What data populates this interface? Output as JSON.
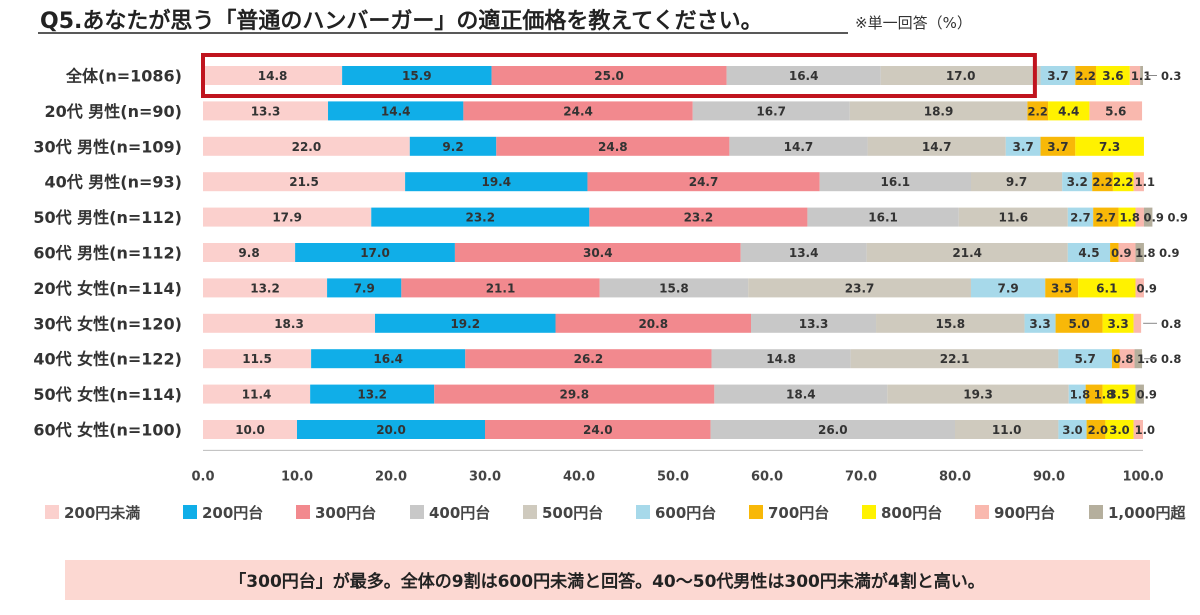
{
  "chart_data": {
    "type": "bar",
    "orientation": "horizontal",
    "stacked": true,
    "title": "Q5.あなたが思う「普通のハンバーガー」の適正価格を教えてください。",
    "note": "※単一回答（%）",
    "categories": [
      "全体(n=1086)",
      "20代 男性(n=90)",
      "30代 男性(n=109)",
      "40代 男性(n=93)",
      "50代 男性(n=112)",
      "60代 男性(n=112)",
      "20代 女性(n=114)",
      "30代 女性(n=120)",
      "40代 女性(n=122)",
      "50代 女性(n=114)",
      "60代 女性(n=100)"
    ],
    "series": [
      {
        "name": "200円未満",
        "color": "#fbd0cd",
        "values": [
          14.8,
          13.3,
          22.0,
          21.5,
          17.9,
          9.8,
          13.2,
          18.3,
          11.5,
          11.4,
          10.0
        ]
      },
      {
        "name": "200円台",
        "color": "#10aee8",
        "values": [
          15.9,
          14.4,
          9.2,
          19.4,
          23.2,
          17.0,
          7.9,
          19.2,
          16.4,
          13.2,
          20.0
        ]
      },
      {
        "name": "300円台",
        "color": "#f2898e",
        "values": [
          25.0,
          24.4,
          24.8,
          24.7,
          23.2,
          30.4,
          21.1,
          20.8,
          26.2,
          29.8,
          24.0
        ]
      },
      {
        "name": "400円台",
        "color": "#c8c8c8",
        "values": [
          16.4,
          16.7,
          14.7,
          16.1,
          16.1,
          13.4,
          15.8,
          13.3,
          14.8,
          18.4,
          26.0
        ]
      },
      {
        "name": "500円台",
        "color": "#cfcabe",
        "values": [
          17.0,
          18.9,
          14.7,
          9.7,
          11.6,
          21.4,
          23.7,
          15.8,
          22.1,
          19.3,
          11.0
        ]
      },
      {
        "name": "600円台",
        "color": "#a7d9ea",
        "values": [
          3.7,
          0,
          3.7,
          3.2,
          2.7,
          4.5,
          7.9,
          3.3,
          5.7,
          1.8,
          3.0
        ]
      },
      {
        "name": "700円台",
        "color": "#f8b808",
        "values": [
          2.2,
          2.2,
          3.7,
          2.2,
          2.7,
          0.9,
          3.5,
          5.0,
          0.8,
          1.8,
          2.0
        ]
      },
      {
        "name": "800円台",
        "color": "#fff200",
        "values": [
          3.6,
          4.4,
          7.3,
          2.2,
          1.8,
          0,
          6.1,
          3.3,
          0,
          3.5,
          3.0
        ]
      },
      {
        "name": "900円台",
        "color": "#f9b8ae",
        "values": [
          1.1,
          5.6,
          0,
          1.1,
          0.9,
          1.8,
          0.9,
          0.8,
          1.6,
          0,
          1.0
        ]
      },
      {
        "name": "1,000円超",
        "color": "#b5af9d",
        "values": [
          0.3,
          0,
          0,
          0,
          0.9,
          0.9,
          0,
          0,
          0.8,
          0.9,
          0
        ]
      }
    ],
    "xlim": [
      0,
      100
    ],
    "xticks": [
      "0.0",
      "10.0",
      "20.0",
      "30.0",
      "40.0",
      "50.0",
      "60.0",
      "70.0",
      "80.0",
      "90.0",
      "100.0"
    ],
    "grid": false,
    "legend_position": "bottom",
    "highlight_category": "全体(n=1086)",
    "highlight_color": "#c0141e"
  },
  "footer": {
    "text": "「300円台」が最多。全体の9割は600円未満と回答。40〜50代男性は300円未満が4割と高い。",
    "background": "#fcd8d2"
  }
}
